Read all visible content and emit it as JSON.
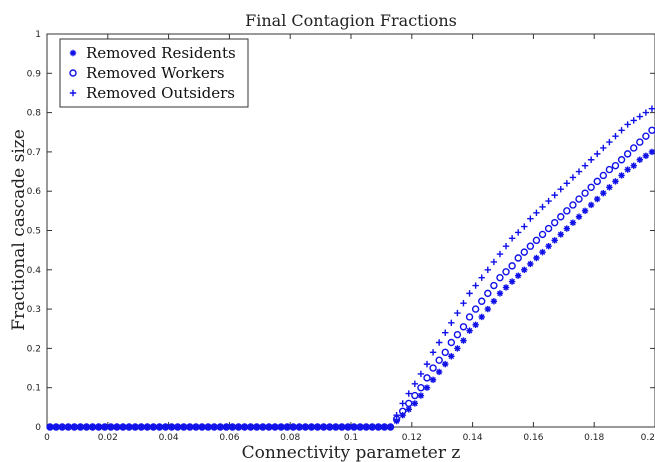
{
  "chart_data": {
    "type": "scatter",
    "title": "Final Contagion Fractions",
    "xlabel": "Connectivity parameter z",
    "ylabel": "Fractional cascade size",
    "xlim": [
      0,
      0.2
    ],
    "ylim": [
      0,
      1
    ],
    "xticks": [
      "0",
      "0.02",
      "0.04",
      "0.06",
      "0.08",
      "0.1",
      "0.12",
      "0.14",
      "0.16",
      "0.18",
      "0.2"
    ],
    "yticks": [
      "0",
      "0.1",
      "0.2",
      "0.3",
      "0.4",
      "0.5",
      "0.6",
      "0.7",
      "0.8",
      "0.9",
      "1"
    ],
    "grid": false,
    "legend_position": "top-left",
    "marker_color": "#1010e8",
    "x_start": 0.001,
    "x_step": 0.002,
    "series": [
      {
        "name": "Removed Residents",
        "marker": "asterisk",
        "values": [
          0,
          0,
          0,
          0,
          0,
          0,
          0,
          0,
          0,
          0,
          0,
          0,
          0,
          0,
          0,
          0,
          0,
          0,
          0,
          0,
          0,
          0,
          0,
          0,
          0,
          0,
          0,
          0,
          0,
          0,
          0,
          0,
          0,
          0,
          0,
          0,
          0,
          0,
          0,
          0,
          0,
          0,
          0,
          0,
          0,
          0,
          0,
          0,
          0,
          0,
          0,
          0,
          0,
          0,
          0,
          0,
          0,
          0.015,
          0.03,
          0.045,
          0.06,
          0.08,
          0.1,
          0.12,
          0.14,
          0.16,
          0.18,
          0.2,
          0.22,
          0.245,
          0.26,
          0.28,
          0.3,
          0.32,
          0.34,
          0.355,
          0.37,
          0.385,
          0.4,
          0.415,
          0.43,
          0.445,
          0.46,
          0.475,
          0.49,
          0.505,
          0.52,
          0.535,
          0.55,
          0.565,
          0.58,
          0.595,
          0.61,
          0.625,
          0.64,
          0.655,
          0.665,
          0.68,
          0.69,
          0.7
        ]
      },
      {
        "name": "Removed Workers",
        "marker": "circle",
        "values": [
          0,
          0,
          0,
          0,
          0,
          0,
          0,
          0,
          0,
          0,
          0,
          0,
          0,
          0,
          0,
          0,
          0,
          0,
          0,
          0,
          0,
          0,
          0,
          0,
          0,
          0,
          0,
          0,
          0,
          0,
          0,
          0,
          0,
          0,
          0,
          0,
          0,
          0,
          0,
          0,
          0,
          0,
          0,
          0,
          0,
          0,
          0,
          0,
          0,
          0,
          0,
          0,
          0,
          0,
          0,
          0,
          0,
          0.02,
          0.04,
          0.06,
          0.08,
          0.1,
          0.125,
          0.15,
          0.17,
          0.19,
          0.215,
          0.235,
          0.255,
          0.28,
          0.3,
          0.32,
          0.34,
          0.36,
          0.38,
          0.395,
          0.41,
          0.43,
          0.445,
          0.46,
          0.475,
          0.49,
          0.505,
          0.52,
          0.535,
          0.55,
          0.565,
          0.58,
          0.595,
          0.61,
          0.625,
          0.64,
          0.655,
          0.665,
          0.68,
          0.695,
          0.71,
          0.725,
          0.74,
          0.755
        ]
      },
      {
        "name": "Removed Outsiders",
        "marker": "plus",
        "values": [
          0,
          0,
          0,
          0,
          0,
          0,
          0,
          0,
          0,
          0,
          0,
          0,
          0,
          0,
          0,
          0,
          0,
          0,
          0,
          0,
          0,
          0,
          0,
          0,
          0,
          0,
          0,
          0,
          0,
          0,
          0,
          0,
          0,
          0,
          0,
          0,
          0,
          0,
          0,
          0,
          0,
          0,
          0,
          0,
          0,
          0,
          0,
          0,
          0,
          0,
          0,
          0,
          0,
          0,
          0,
          0,
          0,
          0.03,
          0.06,
          0.085,
          0.11,
          0.135,
          0.16,
          0.19,
          0.215,
          0.24,
          0.265,
          0.29,
          0.315,
          0.34,
          0.36,
          0.38,
          0.4,
          0.42,
          0.44,
          0.46,
          0.48,
          0.495,
          0.51,
          0.53,
          0.545,
          0.56,
          0.575,
          0.59,
          0.605,
          0.62,
          0.635,
          0.65,
          0.665,
          0.68,
          0.695,
          0.71,
          0.725,
          0.74,
          0.755,
          0.77,
          0.78,
          0.79,
          0.8,
          0.81
        ]
      }
    ]
  }
}
